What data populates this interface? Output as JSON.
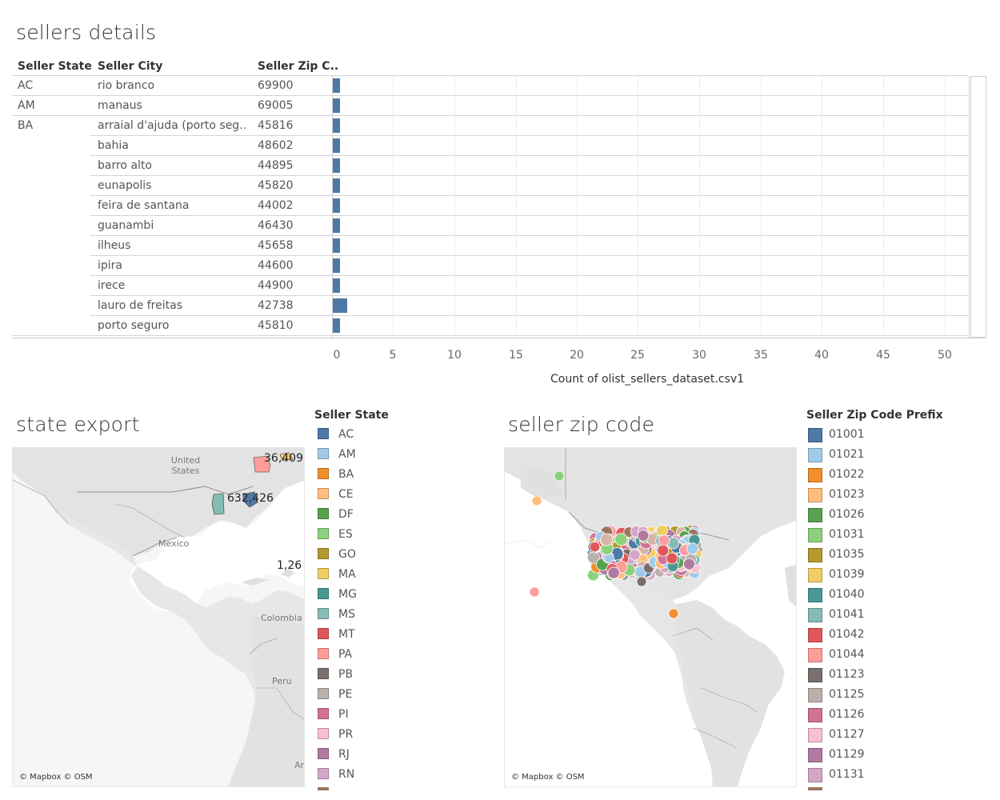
{
  "sellers_details": {
    "title": "sellers details",
    "headers": {
      "state": "Seller State",
      "city": "Seller City",
      "zip": "Seller Zip C.."
    },
    "rows": [
      {
        "state": "AC",
        "city": "rio branco",
        "zip": "69900",
        "count": 1
      },
      {
        "state": "AM",
        "city": "manaus",
        "zip": "69005",
        "count": 1
      },
      {
        "state": "BA",
        "city": "arraial d'ajuda (porto seg..",
        "zip": "45816",
        "count": 1
      },
      {
        "state": "",
        "city": "bahia",
        "zip": "48602",
        "count": 1
      },
      {
        "state": "",
        "city": "barro alto",
        "zip": "44895",
        "count": 1
      },
      {
        "state": "",
        "city": "eunapolis",
        "zip": "45820",
        "count": 1
      },
      {
        "state": "",
        "city": "feira de santana",
        "zip": "44002",
        "count": 1
      },
      {
        "state": "",
        "city": "guanambi",
        "zip": "46430",
        "count": 1
      },
      {
        "state": "",
        "city": "ilheus",
        "zip": "45658",
        "count": 1
      },
      {
        "state": "",
        "city": "ipira",
        "zip": "44600",
        "count": 1
      },
      {
        "state": "",
        "city": "irece",
        "zip": "44900",
        "count": 1
      },
      {
        "state": "",
        "city": "lauro de freitas",
        "zip": "42738",
        "count": 2
      },
      {
        "state": "",
        "city": "porto seguro",
        "zip": "45810",
        "count": 1
      }
    ],
    "axis_ticks": [
      "0",
      "5",
      "10",
      "15",
      "20",
      "25",
      "30",
      "35",
      "40",
      "45",
      "50"
    ],
    "axis_title": "Count of olist_sellers_dataset.csv1"
  },
  "chart_data": {
    "type": "bar",
    "categories": [
      "rio branco",
      "manaus",
      "arraial d'ajuda (porto seg..",
      "bahia",
      "barro alto",
      "eunapolis",
      "feira de santana",
      "guanambi",
      "ilheus",
      "ipira",
      "irece",
      "lauro de freitas",
      "porto seguro"
    ],
    "values": [
      1,
      1,
      1,
      1,
      1,
      1,
      1,
      1,
      1,
      1,
      1,
      2,
      1
    ],
    "xlabel": "Count of olist_sellers_dataset.csv1",
    "xlim": [
      0,
      52
    ],
    "color": "#4e79a7"
  },
  "state_export": {
    "title": "state export",
    "map_labels": {
      "us": "United States",
      "mexico": "Mexico",
      "colombia": "Colombia",
      "peru": "Peru",
      "ar": "Ar"
    },
    "values": [
      "36,409",
      "632,426",
      "1,26"
    ],
    "credit": "© Mapbox © OSM",
    "legend_title": "Seller State",
    "legend": [
      {
        "label": "AC",
        "color": "#4e79a7"
      },
      {
        "label": "AM",
        "color": "#a0cbe8"
      },
      {
        "label": "BA",
        "color": "#f28e2b"
      },
      {
        "label": "CE",
        "color": "#ffbe7d"
      },
      {
        "label": "DF",
        "color": "#59a14f"
      },
      {
        "label": "ES",
        "color": "#8cd17d"
      },
      {
        "label": "GO",
        "color": "#b6992d"
      },
      {
        "label": "MA",
        "color": "#f1ce63"
      },
      {
        "label": "MG",
        "color": "#499894"
      },
      {
        "label": "MS",
        "color": "#86bcb6"
      },
      {
        "label": "MT",
        "color": "#e15759"
      },
      {
        "label": "PA",
        "color": "#ff9d9a"
      },
      {
        "label": "PB",
        "color": "#79706e"
      },
      {
        "label": "PE",
        "color": "#bab0ac"
      },
      {
        "label": "PI",
        "color": "#d37295"
      },
      {
        "label": "PR",
        "color": "#fabfd2"
      },
      {
        "label": "RJ",
        "color": "#b07aa1"
      },
      {
        "label": "RN",
        "color": "#d4a6c8"
      }
    ]
  },
  "seller_zip": {
    "title": "seller zip code",
    "credit": "© Mapbox © OSM",
    "legend_title": "Seller Zip Code Prefix",
    "legend": [
      {
        "label": "01001",
        "color": "#4e79a7"
      },
      {
        "label": "01021",
        "color": "#a0cbe8"
      },
      {
        "label": "01022",
        "color": "#f28e2b"
      },
      {
        "label": "01023",
        "color": "#ffbe7d"
      },
      {
        "label": "01026",
        "color": "#59a14f"
      },
      {
        "label": "01031",
        "color": "#8cd17d"
      },
      {
        "label": "01035",
        "color": "#b6992d"
      },
      {
        "label": "01039",
        "color": "#f1ce63"
      },
      {
        "label": "01040",
        "color": "#499894"
      },
      {
        "label": "01041",
        "color": "#86bcb6"
      },
      {
        "label": "01042",
        "color": "#e15759"
      },
      {
        "label": "01044",
        "color": "#ff9d9a"
      },
      {
        "label": "01123",
        "color": "#79706e"
      },
      {
        "label": "01125",
        "color": "#bab0ac"
      },
      {
        "label": "01126",
        "color": "#d37295"
      },
      {
        "label": "01127",
        "color": "#fabfd2"
      },
      {
        "label": "01129",
        "color": "#b07aa1"
      },
      {
        "label": "01131",
        "color": "#d4a6c8"
      }
    ]
  }
}
